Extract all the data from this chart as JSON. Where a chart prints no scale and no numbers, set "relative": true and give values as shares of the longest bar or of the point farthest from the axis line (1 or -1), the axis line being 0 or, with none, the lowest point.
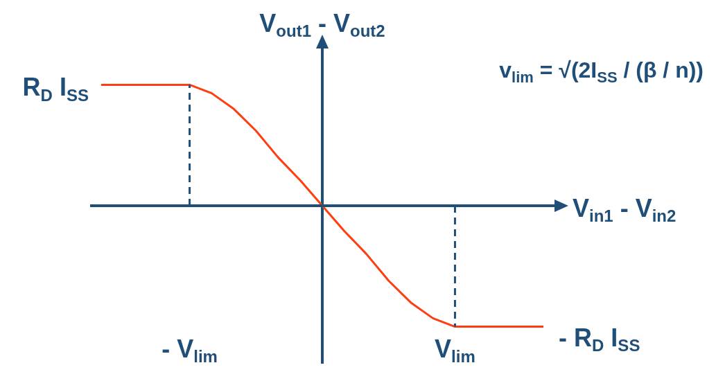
{
  "chart_data": {
    "type": "line",
    "relative": true,
    "xlabel": "V$_{in1}$ - V$_{in2}$",
    "ylabel": "V$_{out1}$ - V$_{out2}$",
    "categories": [
      null,
      null,
      null,
      null,
      "- V$_{lim}$",
      null,
      null,
      null,
      null,
      null,
      null,
      null,
      null,
      null,
      null,
      null,
      "V$_{lim}$",
      null,
      null,
      null,
      null
    ],
    "legend": false,
    "marker": "none",
    "annotations": [
      "v$_{lim}$ = √(2I$_{SS}$ / (β / n))",
      "R$_{D}$ I$_{SS}$",
      "- R$_{D}$ I$_{SS}$"
    ],
    "ref_lines": [
      {
        "axis": "y",
        "value": 0,
        "color": "#1f4e79",
        "line_style": "solid"
      },
      {
        "axis": "x",
        "value": "- V$_{lim}$",
        "color": "#1f4e79",
        "line_style": "dashed"
      },
      {
        "axis": "x",
        "value": "V$_{lim}$",
        "color": "#1f4e79",
        "line_style": "dashed"
      }
    ],
    "series": [
      {
        "color": "#ff3d12",
        "values": [
          1,
          1,
          1,
          1,
          1,
          0.93,
          0.8,
          0.62,
          0.4,
          0.21,
          0,
          -0.21,
          -0.4,
          -0.62,
          -0.8,
          -0.93,
          -1,
          -1,
          -1,
          -1,
          -1
        ]
      }
    ]
  }
}
